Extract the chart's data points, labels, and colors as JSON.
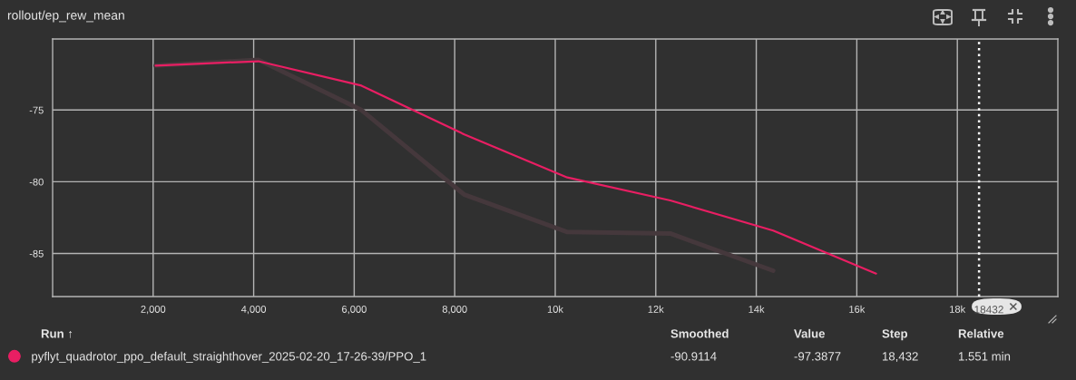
{
  "chart_data": {
    "type": "line",
    "title": "rollout/ep_rew_mean",
    "x": [
      2048,
      4096,
      6144,
      8192,
      10240,
      12288,
      14336,
      16384
    ],
    "series": [
      {
        "color": "#45383c",
        "values": [
          -71.9,
          -71.5,
          -75.0,
          -80.9,
          -83.5,
          -83.6,
          -86.2,
          null
        ]
      },
      {
        "name": "pyflyt_quadrotor_ppo_default_straighthover_2025-02-20_17-26-39/PPO_1",
        "color": "#e91e63",
        "values": [
          -71.9,
          -71.6,
          -73.3,
          -76.7,
          -79.7,
          -81.3,
          -83.4,
          -86.4
        ]
      }
    ],
    "xlim": [
      0,
      20000
    ],
    "ylim": [
      -88.0,
      -70.05
    ],
    "xticks": [
      {
        "value": 2000,
        "label": "2,000"
      },
      {
        "value": 4000,
        "label": "4,000"
      },
      {
        "value": 6000,
        "label": "6,000"
      },
      {
        "value": 8000,
        "label": "8,000"
      },
      {
        "value": 10000,
        "label": "10k"
      },
      {
        "value": 12000,
        "label": "12k"
      },
      {
        "value": 14000,
        "label": "14k"
      },
      {
        "value": 16000,
        "label": "16k"
      },
      {
        "value": 18000,
        "label": "18k"
      }
    ],
    "yticks": [
      -75,
      -80,
      -85
    ],
    "grid": true,
    "legend": "bottom",
    "ref_lines": [
      {
        "axis": "x",
        "value": 18432,
        "label": "18432",
        "color": "#ffffff",
        "line_style": "dotted"
      }
    ],
    "annotations": [
      "Run ↑",
      "Smoothed",
      "Value",
      "Step",
      "Relative",
      "-90.9114",
      "-97.3877",
      "18,432",
      "1.551 min"
    ]
  }
}
